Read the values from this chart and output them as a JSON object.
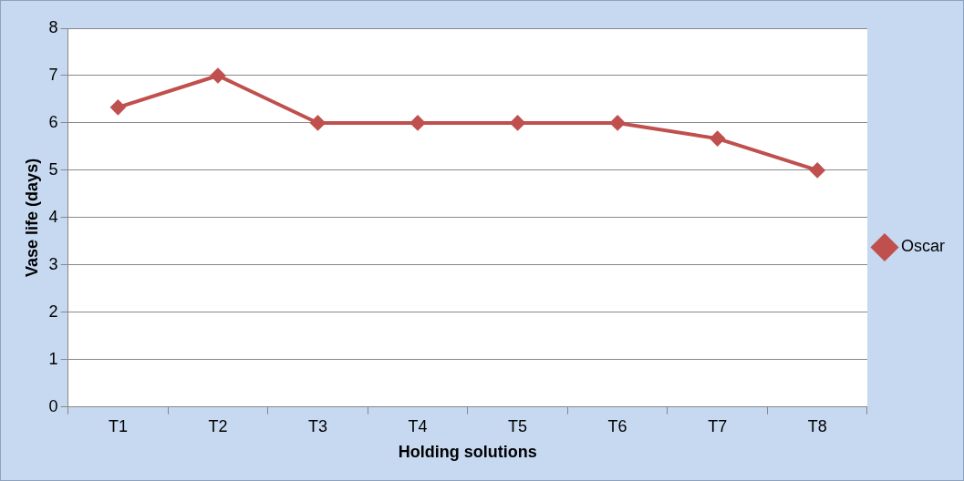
{
  "chart_data": {
    "type": "line",
    "xlabel": "Holding solutions",
    "ylabel": "Vase life (days)",
    "categories": [
      "T1",
      "T2",
      "T3",
      "T4",
      "T5",
      "T6",
      "T7",
      "T8"
    ],
    "series": [
      {
        "name": "Oscar",
        "color": "#c0504d",
        "values": [
          6.33,
          7,
          6,
          6,
          6,
          6,
          5.67,
          5
        ]
      }
    ],
    "ylim": [
      0,
      8
    ],
    "yticks": [
      0,
      1,
      2,
      3,
      4,
      5,
      6,
      7,
      8
    ],
    "grid": "y",
    "legend": "right",
    "marker": "diamond",
    "line_style": "solid"
  }
}
